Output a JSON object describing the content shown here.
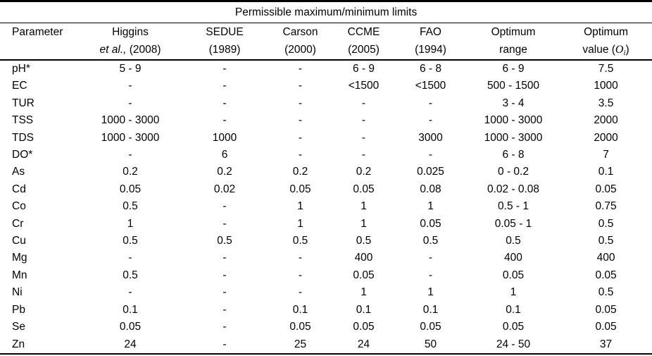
{
  "table": {
    "title": "Permissible maximum/minimum limits",
    "columns": [
      {
        "line1": "Parameter",
        "line2": ""
      },
      {
        "line1": "Higgins",
        "line2_italic": "et al.,",
        "line2_rest": "(2008)"
      },
      {
        "line1": "SEDUE",
        "line2": "(1989)"
      },
      {
        "line1": "Carson",
        "line2": "(2000)"
      },
      {
        "line1": "CCME",
        "line2": "(2005)"
      },
      {
        "line1": "FAO",
        "line2": "(1994)"
      },
      {
        "line1": "Optimum",
        "line2": "range"
      },
      {
        "line1": "Optimum",
        "line2_prefix": "value (",
        "math_var": "O",
        "math_sub": "i",
        "line2_suffix": ")"
      }
    ],
    "rows": [
      {
        "param": "pH*",
        "cells": [
          "5 - 9",
          "-",
          "-",
          "6 - 9",
          "6 - 8",
          "6 - 9",
          "7.5"
        ]
      },
      {
        "param": "EC",
        "cells": [
          "-",
          "-",
          "-",
          "<1500",
          "<1500",
          "500 - 1500",
          "1000"
        ]
      },
      {
        "param": "TUR",
        "cells": [
          "-",
          "-",
          "-",
          "-",
          "-",
          "3 - 4",
          "3.5"
        ]
      },
      {
        "param": "TSS",
        "cells": [
          "1000 - 3000",
          "-",
          "-",
          "-",
          "-",
          "1000 - 3000",
          "2000"
        ]
      },
      {
        "param": "TDS",
        "cells": [
          "1000 - 3000",
          "1000",
          "-",
          "-",
          "3000",
          "1000 - 3000",
          "2000"
        ]
      },
      {
        "param": "DO*",
        "cells": [
          "-",
          "6",
          "-",
          "-",
          "-",
          "6 - 8",
          "7"
        ]
      },
      {
        "param": "As",
        "cells": [
          "0.2",
          "0.2",
          "0.2",
          "0.2",
          "0.025",
          "0 - 0.2",
          "0.1"
        ]
      },
      {
        "param": "Cd",
        "cells": [
          "0.05",
          "0.02",
          "0.05",
          "0.05",
          "0.08",
          "0.02 - 0.08",
          "0.05"
        ]
      },
      {
        "param": "Co",
        "cells": [
          "0.5",
          "-",
          "1",
          "1",
          "1",
          "0.5 - 1",
          "0.75"
        ]
      },
      {
        "param": "Cr",
        "cells": [
          "1",
          "-",
          "1",
          "1",
          "0.05",
          "0.05 - 1",
          "0.5"
        ]
      },
      {
        "param": "Cu",
        "cells": [
          "0.5",
          "0.5",
          "0.5",
          "0.5",
          "0.5",
          "0.5",
          "0.5"
        ]
      },
      {
        "param": "Mg",
        "cells": [
          "-",
          "-",
          "-",
          "400",
          "-",
          "400",
          "400"
        ]
      },
      {
        "param": "Mn",
        "cells": [
          "0.5",
          "-",
          "-",
          "0.05",
          "-",
          "0.05",
          "0.05"
        ]
      },
      {
        "param": "Ni",
        "cells": [
          "-",
          "-",
          "-",
          "1",
          "1",
          "1",
          "0.5"
        ]
      },
      {
        "param": "Pb",
        "cells": [
          "0.1",
          "-",
          "0.1",
          "0.1",
          "0.1",
          "0.1",
          "0.05"
        ]
      },
      {
        "param": "Se",
        "cells": [
          "0.05",
          "-",
          "0.05",
          "0.05",
          "0.05",
          "0.05",
          "0.05"
        ]
      },
      {
        "param": "Zn",
        "cells": [
          "24",
          "-",
          "25",
          "24",
          "50",
          "24 - 50",
          "37"
        ]
      }
    ]
  },
  "colors": {
    "text": "#000000",
    "rule": "#000000",
    "background": "#ffffff"
  }
}
